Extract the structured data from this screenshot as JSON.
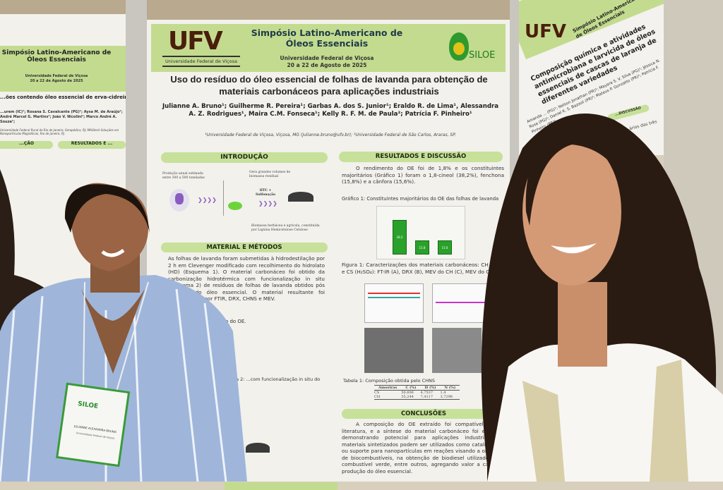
{
  "main_poster": {
    "event_title": "Simpósio Latino-Americano de Óleos Essenciais",
    "event_host": "Universidade Federal de Viçosa",
    "event_dates": "20 a 22 de Agosto de 2025",
    "logo_left": "UFV",
    "logo_left_caption": "Universidade Federal de Viçosa",
    "logo_right": "SILOE",
    "title": "Uso do resíduo do óleo essencial de folhas de lavanda para obtenção de materiais carbonáceos para aplicações industriais",
    "authors": "Julianne A. Bruno¹; Guilherme R. Pereira¹; Garbas A. dos S. Junior¹; Eraldo R. de Lima¹, Alessandra A. Z. Rodrigues¹, Maira C.M. Fonseca¹; Kelly R. F. M. de Paula²; Patrícia F. Pinheiro¹",
    "affiliations": "¹Universidade Federal de Viçosa, Viçosa, MG (julianne.bruno@ufv.br); ²Universidade Federal de São Carlos, Araras, SP.",
    "sections": {
      "introducao": {
        "heading": "INTRODUÇÃO",
        "note1": "Produção anual estimada entre 300 a 500 toneladas",
        "note2": "Gera grandes volumes de biomassa residual",
        "note3": "HTC + Sulfonação",
        "note4": "Biomassa herbácea e agrícola, constituída por Lignina Hemicelulose Celulose"
      },
      "metodos": {
        "heading": "MATERIAL E MÉTODOS",
        "text": "As folhas de lavanda foram submetidas à hidrodestilação por 2 h em Clevenger modificado com recolhimento do hidrolato (HD) (Esquema 1). O material carbonáceo foi obtido da carbonização hidrotérmica com funcionalização in situ (Esquema 2) de resíduos de folhas de lavanda obtidos pós extração do óleo essencial. O material resultante foi caracterizado por FTIR, DRX, CHNS e MEV.",
        "scheme1": "...ão do OE.",
        "scheme2": "Esquema 2: ...com funcionalização in situ do OE."
      },
      "resultados": {
        "heading": "RESULTADOS E DISCUSSÃO",
        "text": "O rendimento do OE foi de 1,8% e os constituintes majoritários (Gráfico 1) foram o 1,8-cineol (38,2%), fenchona (15,8%) e a cânfora (15,6%).",
        "chart_caption": "Gráfico 1: Constituintes majoritários do OE das folhas de lavanda",
        "bars": [
          {
            "label": "38.2",
            "value": 38.2
          },
          {
            "label": "15.8",
            "value": 15.8
          },
          {
            "label": "15.6",
            "value": 15.6
          }
        ],
        "figure_caption": "Figura 1: Caracterizações dos materiais carbonáceos: CH (H₂O) e CS (H₂SO₄): FT-IR (A), DRX (B), MEV do CH (C), MEV do CS (D).",
        "table_caption": "Tabela 1: Composição obtida pelo CHNS",
        "table_headers": [
          "Amostras",
          "C (%)",
          "H (%)",
          "N (%)"
        ],
        "table_rows": [
          [
            "CS",
            "50,606",
            "4,7537",
            "1,4"
          ],
          [
            "CH",
            "55,244",
            "7,4117",
            "3,7298"
          ]
        ]
      },
      "conclusoes": {
        "heading": "CONCLUSÕES",
        "text": "A composição do OE extraído foi compatível com a literatura, e a síntese do material carbonáceo foi eficiente, demonstrando potencial para aplicações industriais. Os materiais sintetizados podem ser utilizados como catalisadores ou suporte para nanopartículas em reações visando a obtenção de biocombustíveis, na obtenção de biodiesel utilizado como combustível verde, entre outros, agregando valor a cadeia e produção do óleo essencial."
      }
    }
  },
  "left_poster": {
    "event_title": "Simpósio Latino-Americano de Óleos Essenciais",
    "event_host": "Universidade Federal de Viçosa",
    "event_dates": "20 a 22 de Agosto de 2025",
    "title": "...ões contendo óleo essencial de erva-cidreira ... praga do feijão-caupi Callosobruchus macul...",
    "authors": "...urem (IC)¹; Rosana S. Cavalcante (PG)¹; Aysa M. de Araújo¹; André Marcel G. Martins¹; João V. Nicolini¹; Marco André A. Souza¹;",
    "affiliations": "Universidade Federal Rural do Rio de Janeiro, Seropédica, RJ; MAGtech Soluções em Nanopartículas Magnéticas, Rio de Janeiro, RJ",
    "section_left": "...ÇÃO",
    "section_right": "RESULTADOS E ..."
  },
  "right_poster": {
    "logo": "UFV",
    "event_title": "Simpósio Latino-Americano de Óleos Essenciais",
    "event_host": "Universidade Federal de Viçosa",
    "event_dates": "20 a 22 de Agosto de 2025",
    "title": "Composição química e atividades antimicrobiana e larvicida de óleos essenciais de cascas de laranja de diferentes variedades",
    "authors": "Amanda ... (PG)¹; Nelson Jonathan (PR)¹; Mayara S. V. Silva (PG)¹; Jéssica N. Rosa (PG)¹; Daniel K. S. Bazzoli (PR)¹; Mateus P. Gonzatto (PR)¹; Patrícia F. Pinheiro (PR)¹",
    "section": "...DISCUSSÃO",
    "snippet": "...ários das três"
  },
  "badge": {
    "logo": "SILOE",
    "name": "JULIANNE ALEXANDRA BRUNO",
    "org": "Universidade Federal de Viçosa"
  },
  "colors": {
    "poster_green": "#c3db8e",
    "bar_green": "#2aa12a",
    "ufv_brown": "#5a2a12",
    "ufv_yellow": "#d9b400",
    "shirt_blue": "#9fb6da"
  }
}
